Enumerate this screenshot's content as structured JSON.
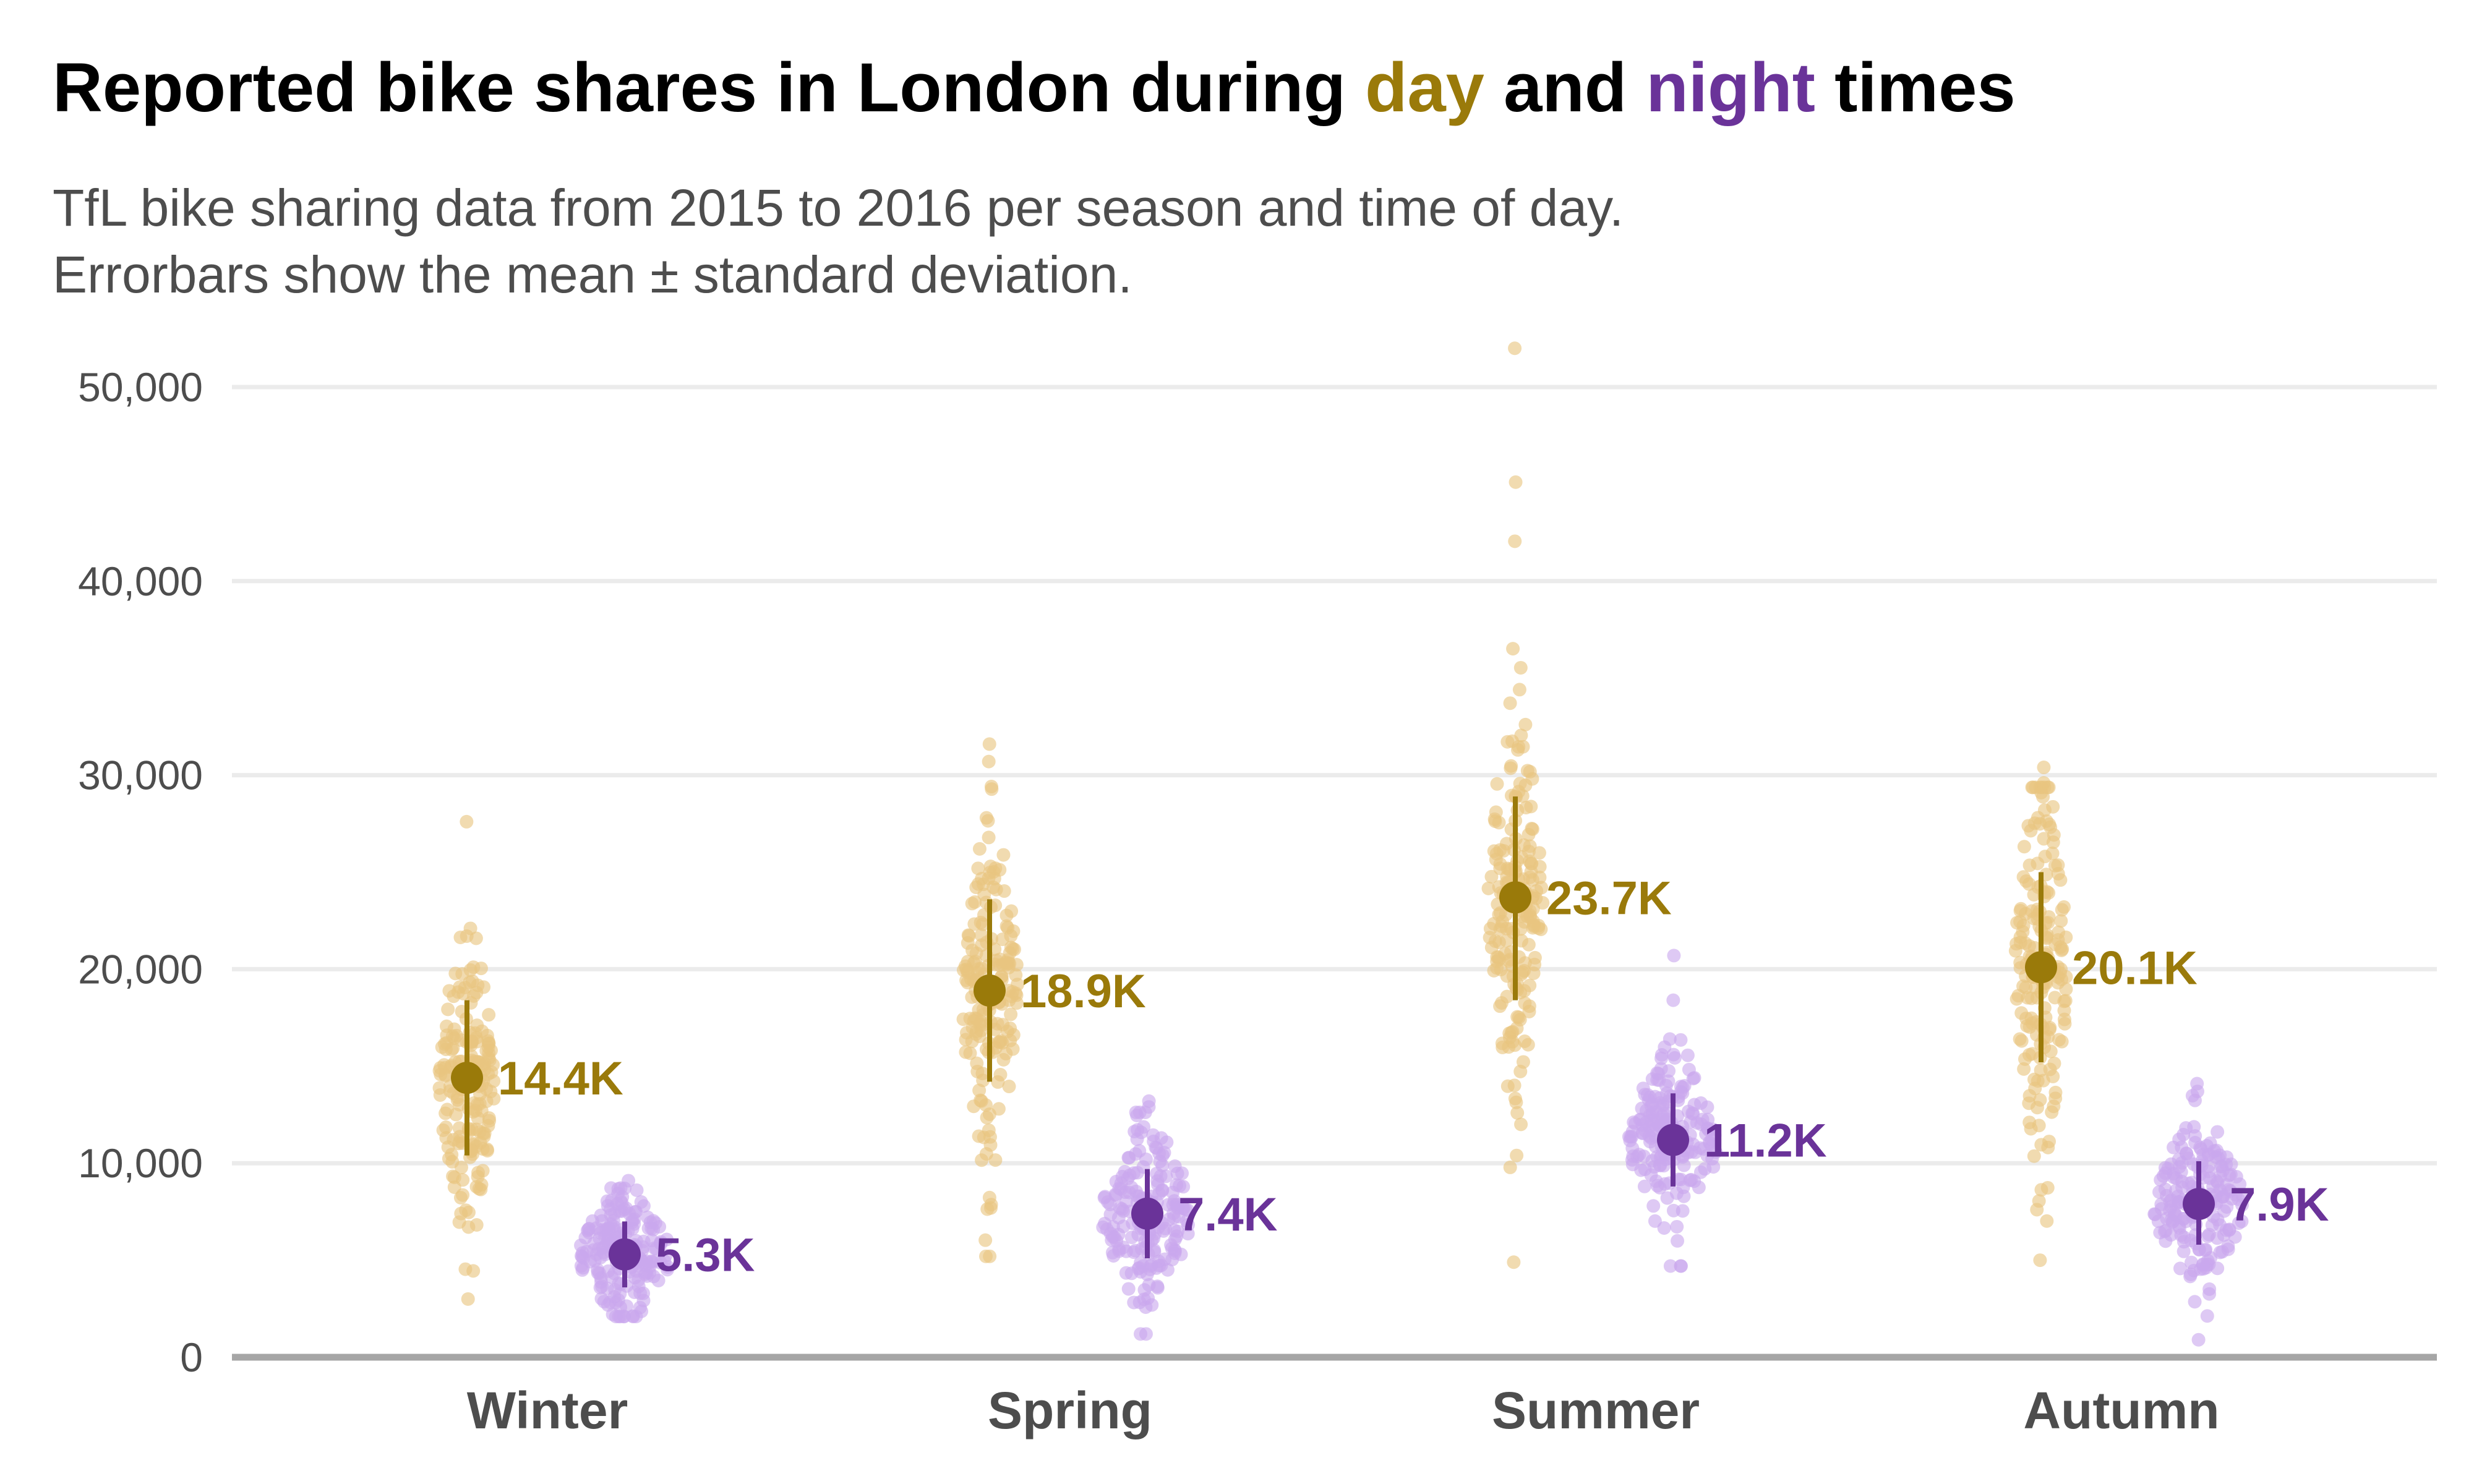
{
  "title": {
    "parts": [
      {
        "text": "Reported",
        "color": "#000000"
      },
      {
        "text": "bike",
        "color": "#000000"
      },
      {
        "text": "shares",
        "color": "#000000"
      },
      {
        "text": "in",
        "color": "#000000"
      },
      {
        "text": "London",
        "color": "#000000"
      },
      {
        "text": "during",
        "color": "#000000"
      },
      {
        "text": "day",
        "color": "#9a7a0a"
      },
      {
        "text": "and",
        "color": "#000000"
      },
      {
        "text": "night",
        "color": "#6a3399"
      },
      {
        "text": "times",
        "color": "#000000"
      }
    ]
  },
  "subtitle": {
    "line1": "TfL bike sharing data from 2015 to 2016 per season and time of day.",
    "line2": "Errorbars show the mean ± standard deviation."
  },
  "colors": {
    "day_points": "#e8c57f",
    "day_mean": "#9a7a0a",
    "night_points": "#c9a8ee",
    "night_mean": "#6a3399",
    "gridline": "#ebebeb",
    "baseline": "#a6a6a6"
  },
  "chart_data": {
    "type": "scatter",
    "x_axis_type": "categorical",
    "categories": [
      "Winter",
      "Spring",
      "Summer",
      "Autumn"
    ],
    "ylim": [
      0,
      52000
    ],
    "yticks": [
      0,
      10000,
      20000,
      30000,
      40000,
      50000
    ],
    "ytick_labels": [
      "0",
      "10,000",
      "20,000",
      "30,000",
      "40,000",
      "50,000"
    ],
    "grid": "horizontal",
    "legend": "none",
    "series": [
      {
        "key": "day",
        "means": [
          14400,
          18900,
          23700,
          20100
        ],
        "sd_lower": [
          10400,
          14200,
          18400,
          15200
        ],
        "sd_upper": [
          18400,
          23600,
          28900,
          25000
        ],
        "mean_labels": [
          "14.4K",
          "18.9K",
          "23.7K",
          "20.1K"
        ],
        "points_min": [
          3000,
          5200,
          4900,
          5000
        ],
        "points_max": [
          27600,
          31600,
          52000,
          30400
        ],
        "outliers": [
          [
            27600
          ],
          [
            31600,
            30700,
            27800
          ],
          [
            52000,
            45100,
            31300
          ],
          [
            30400,
            29600,
            28200
          ]
        ]
      },
      {
        "key": "night",
        "means": [
          5300,
          7400,
          11200,
          7900
        ],
        "sd_lower": [
          3600,
          5100,
          8800,
          5800
        ],
        "sd_upper": [
          7000,
          9700,
          13600,
          10100
        ],
        "mean_labels": [
          "5.3K",
          "7.4K",
          "11.2K",
          "7.9K"
        ],
        "points_min": [
          2100,
          1200,
          4700,
          900
        ],
        "points_max": [
          9100,
          13200,
          20700,
          14100
        ],
        "outliers": [
          [
            9100
          ],
          [
            13200,
            12900
          ],
          [
            20700,
            18400,
            16400
          ],
          [
            14100,
            13700
          ]
        ]
      }
    ]
  }
}
